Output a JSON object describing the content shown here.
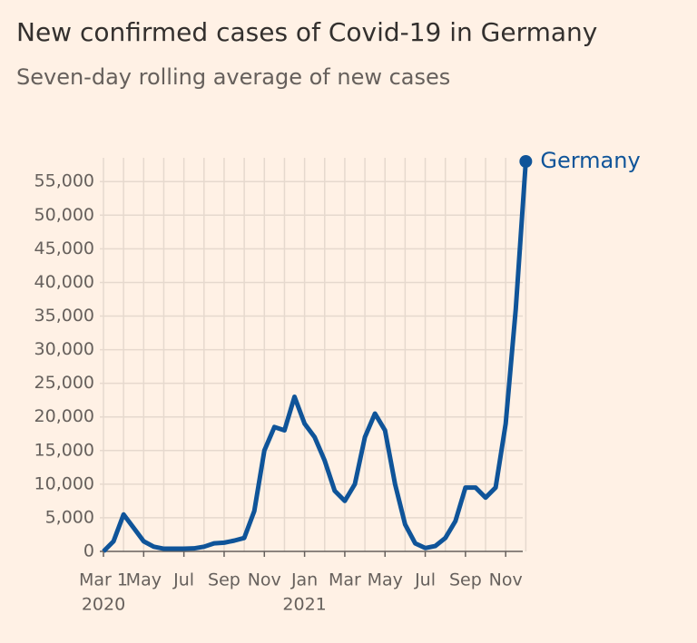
{
  "chart_data": {
    "type": "line",
    "title": "New confirmed cases of Covid-19 in Germany",
    "subtitle": "Seven-day rolling average of new cases",
    "categories": [
      "Mar 1",
      null,
      null,
      null,
      "May",
      null,
      null,
      null,
      "Jul",
      null,
      null,
      null,
      "Sep",
      null,
      null,
      null,
      "Nov",
      null,
      null,
      null,
      "Jan",
      null,
      null,
      null,
      "Mar",
      null,
      null,
      null,
      "May",
      null,
      null,
      null,
      "Jul",
      null,
      null,
      null,
      "Sep",
      null,
      null,
      null,
      "Nov",
      null,
      null
    ],
    "year_labels": [
      "2020",
      "2021"
    ],
    "series": [
      {
        "name": "Germany",
        "color": "#0f5499",
        "values": [
          0,
          1500,
          5500,
          3500,
          1500,
          700,
          400,
          400,
          400,
          450,
          700,
          1200,
          1300,
          1600,
          2000,
          6000,
          15000,
          18500,
          18000,
          23000,
          19000,
          17000,
          13500,
          9000,
          7500,
          10000,
          17000,
          20500,
          18000,
          10000,
          4000,
          1200,
          500,
          800,
          2000,
          4500,
          9500,
          9500,
          8000,
          9500,
          19000,
          36000,
          58000
        ]
      }
    ],
    "ylim": [
      0,
      58000
    ],
    "yticks": [
      0,
      {
        "value": 5000,
        "label": "5,000"
      },
      {
        "value": 10000,
        "label": "10,000"
      },
      {
        "value": 15000,
        "label": "15,000"
      },
      {
        "value": 20000,
        "label": "20,000"
      },
      {
        "value": 25000,
        "label": "25,000"
      },
      {
        "value": 30000,
        "label": "30,000"
      },
      {
        "value": 35000,
        "label": "35,000"
      },
      {
        "value": 40000,
        "label": "40,000"
      },
      {
        "value": 45000,
        "label": "45,000"
      },
      {
        "value": 50000,
        "label": "50,000"
      },
      {
        "value": 55000,
        "label": "55,000"
      }
    ],
    "grid": true
  }
}
